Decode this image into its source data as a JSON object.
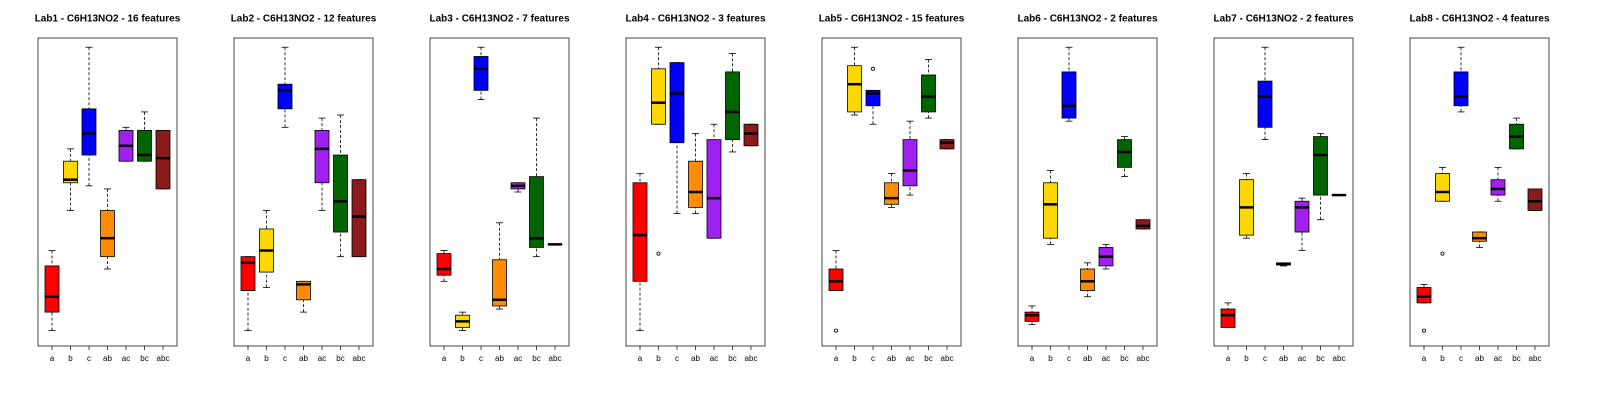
{
  "chart_data": [
    {
      "type": "box",
      "title": "Lab1 - C6H13NO2 - 16 features",
      "ylim": [
        0,
        100
      ],
      "categories": [
        "a",
        "b",
        "c",
        "ab",
        "ac",
        "bc",
        "abc"
      ],
      "colors": [
        "#ff0000",
        "#ffd700",
        "#0000ff",
        "#ff8c00",
        "#a020f0",
        "#006400",
        "#8b1a1a"
      ],
      "boxes": [
        {
          "whislo": 5,
          "q1": 11,
          "med": 16,
          "q3": 26,
          "whishi": 31
        },
        {
          "whislo": 44,
          "q1": 53,
          "med": 54,
          "q3": 60,
          "whishi": 64
        },
        {
          "whislo": 52,
          "q1": 62,
          "med": 69,
          "q3": 77,
          "whishi": 97
        },
        {
          "whislo": 25,
          "q1": 29,
          "med": 35,
          "q3": 44,
          "whishi": 51
        },
        {
          "whislo": 60,
          "q1": 60,
          "med": 65,
          "q3": 70,
          "whishi": 71
        },
        {
          "whislo": 60,
          "q1": 60,
          "med": 62,
          "q3": 70,
          "whishi": 76
        },
        {
          "whislo": 51,
          "q1": 51,
          "med": 61,
          "q3": 70,
          "whishi": 70
        }
      ]
    },
    {
      "type": "box",
      "title": "Lab2 - C6H13NO2 - 12 features",
      "ylim": [
        0,
        100
      ],
      "categories": [
        "a",
        "b",
        "c",
        "ab",
        "ac",
        "bc",
        "abc"
      ],
      "colors": [
        "#ff0000",
        "#ffd700",
        "#0000ff",
        "#ff8c00",
        "#a020f0",
        "#006400",
        "#8b1a1a"
      ],
      "boxes": [
        {
          "whislo": 5,
          "q1": 18,
          "med": 27,
          "q3": 29,
          "whishi": 29
        },
        {
          "whislo": 19,
          "q1": 24,
          "med": 31,
          "q3": 38,
          "whishi": 44
        },
        {
          "whislo": 71,
          "q1": 77,
          "med": 83,
          "q3": 85,
          "whishi": 97
        },
        {
          "whislo": 11,
          "q1": 15,
          "med": 20,
          "q3": 21,
          "whishi": 21
        },
        {
          "whislo": 44,
          "q1": 53,
          "med": 64,
          "q3": 70,
          "whishi": 74
        },
        {
          "whislo": 29,
          "q1": 37,
          "med": 47,
          "q3": 62,
          "whishi": 75
        },
        {
          "whislo": 29,
          "q1": 29,
          "med": 42,
          "q3": 54,
          "whishi": 54
        }
      ]
    },
    {
      "type": "box",
      "title": "Lab3 - C6H13NO2 - 7 features",
      "ylim": [
        0,
        100
      ],
      "categories": [
        "a",
        "b",
        "c",
        "ab",
        "ac",
        "bc",
        "abc"
      ],
      "colors": [
        "#ff0000",
        "#ffd700",
        "#0000ff",
        "#ff8c00",
        "#a020f0",
        "#006400",
        "#8b1a1a"
      ],
      "boxes": [
        {
          "whislo": 21,
          "q1": 23,
          "med": 25,
          "q3": 30,
          "whishi": 31
        },
        {
          "whislo": 5,
          "q1": 6,
          "med": 8,
          "q3": 10,
          "whishi": 11
        },
        {
          "whislo": 80,
          "q1": 83,
          "med": 90,
          "q3": 94,
          "whishi": 97
        },
        {
          "whislo": 12,
          "q1": 13,
          "med": 15,
          "q3": 28,
          "whishi": 40
        },
        {
          "whislo": 50,
          "q1": 51,
          "med": 52,
          "q3": 53,
          "whishi": 53
        },
        {
          "whislo": 29,
          "q1": 32,
          "med": 35,
          "q3": 55,
          "whishi": 74
        },
        {
          "whislo": 33,
          "q1": 33,
          "med": 33,
          "q3": 33,
          "whishi": 33
        }
      ]
    },
    {
      "type": "box",
      "title": "Lab4 - C6H13NO2 - 3 features",
      "ylim": [
        0,
        100
      ],
      "categories": [
        "a",
        "b",
        "c",
        "ab",
        "ac",
        "bc",
        "abc"
      ],
      "colors": [
        "#ff0000",
        "#ffd700",
        "#0000ff",
        "#ff8c00",
        "#a020f0",
        "#006400",
        "#8b1a1a"
      ],
      "boxes": [
        {
          "whislo": 5,
          "q1": 21,
          "med": 36,
          "q3": 53,
          "whishi": 56
        },
        {
          "whislo": 72,
          "q1": 72,
          "med": 79,
          "q3": 90,
          "whishi": 97,
          "outliers": [
            30
          ]
        },
        {
          "whislo": 43,
          "q1": 66,
          "med": 82,
          "q3": 92,
          "whishi": 92
        },
        {
          "whislo": 43,
          "q1": 45,
          "med": 50,
          "q3": 60,
          "whishi": 69
        },
        {
          "whislo": 35,
          "q1": 35,
          "med": 48,
          "q3": 67,
          "whishi": 72
        },
        {
          "whislo": 63,
          "q1": 67,
          "med": 76,
          "q3": 89,
          "whishi": 95
        },
        {
          "whislo": 65,
          "q1": 65,
          "med": 69,
          "q3": 72,
          "whishi": 72
        }
      ]
    },
    {
      "type": "box",
      "title": "Lab5 - C6H13NO2 - 15 features",
      "ylim": [
        0,
        100
      ],
      "categories": [
        "a",
        "b",
        "c",
        "ab",
        "ac",
        "bc",
        "abc"
      ],
      "colors": [
        "#ff0000",
        "#ffd700",
        "#0000ff",
        "#ff8c00",
        "#a020f0",
        "#006400",
        "#8b1a1a"
      ],
      "boxes": [
        {
          "whislo": 18,
          "q1": 18,
          "med": 21,
          "q3": 25,
          "whishi": 31,
          "outliers": [
            5
          ]
        },
        {
          "whislo": 75,
          "q1": 76,
          "med": 85,
          "q3": 91,
          "whishi": 97
        },
        {
          "whislo": 72,
          "q1": 78,
          "med": 82,
          "q3": 83,
          "whishi": 83,
          "outliers": [
            90
          ]
        },
        {
          "whislo": 45,
          "q1": 46,
          "med": 48,
          "q3": 53,
          "whishi": 56
        },
        {
          "whislo": 49,
          "q1": 52,
          "med": 57,
          "q3": 67,
          "whishi": 73
        },
        {
          "whislo": 74,
          "q1": 76,
          "med": 81,
          "q3": 88,
          "whishi": 93
        },
        {
          "whislo": 64,
          "q1": 64,
          "med": 66,
          "q3": 67,
          "whishi": 67
        }
      ]
    },
    {
      "type": "box",
      "title": "Lab6 - C6H13NO2 - 2 features",
      "ylim": [
        0,
        100
      ],
      "categories": [
        "a",
        "b",
        "c",
        "ab",
        "ac",
        "bc",
        "abc"
      ],
      "colors": [
        "#ff0000",
        "#ffd700",
        "#0000ff",
        "#ff8c00",
        "#a020f0",
        "#006400",
        "#8b1a1a"
      ],
      "boxes": [
        {
          "whislo": 7,
          "q1": 8,
          "med": 10,
          "q3": 11,
          "whishi": 13
        },
        {
          "whislo": 33,
          "q1": 35,
          "med": 46,
          "q3": 53,
          "whishi": 57
        },
        {
          "whislo": 73,
          "q1": 74,
          "med": 78,
          "q3": 89,
          "whishi": 97
        },
        {
          "whislo": 16,
          "q1": 18,
          "med": 21,
          "q3": 25,
          "whishi": 27
        },
        {
          "whislo": 25,
          "q1": 26,
          "med": 29,
          "q3": 32,
          "whishi": 33
        },
        {
          "whislo": 55,
          "q1": 58,
          "med": 63,
          "q3": 67,
          "whishi": 68
        },
        {
          "whislo": 38,
          "q1": 38,
          "med": 39,
          "q3": 41,
          "whishi": 41
        }
      ]
    },
    {
      "type": "box",
      "title": "Lab7 - C6H13NO2 - 2 features",
      "ylim": [
        0,
        100
      ],
      "categories": [
        "a",
        "b",
        "c",
        "ab",
        "ac",
        "bc",
        "abc"
      ],
      "colors": [
        "#ff0000",
        "#ffd700",
        "#0000ff",
        "#ff8c00",
        "#a020f0",
        "#006400",
        "#8b1a1a"
      ],
      "boxes": [
        {
          "whislo": 6,
          "q1": 6,
          "med": 10,
          "q3": 12,
          "whishi": 14
        },
        {
          "whislo": 35,
          "q1": 36,
          "med": 45,
          "q3": 54,
          "whishi": 56
        },
        {
          "whislo": 67,
          "q1": 71,
          "med": 81,
          "q3": 86,
          "whishi": 97
        },
        {
          "whislo": 26,
          "q1": 26.3,
          "med": 26.6,
          "q3": 27,
          "whishi": 27
        },
        {
          "whislo": 31,
          "q1": 37,
          "med": 45,
          "q3": 47,
          "whishi": 48
        },
        {
          "whislo": 41,
          "q1": 49,
          "med": 62,
          "q3": 68,
          "whishi": 69
        },
        {
          "whislo": 49,
          "q1": 49,
          "med": 49,
          "q3": 49,
          "whishi": 49
        }
      ]
    },
    {
      "type": "box",
      "title": "Lab8 - C6H13NO2 - 4 features",
      "ylim": [
        0,
        100
      ],
      "categories": [
        "a",
        "b",
        "c",
        "ab",
        "ac",
        "bc",
        "abc"
      ],
      "colors": [
        "#ff0000",
        "#ffd700",
        "#0000ff",
        "#ff8c00",
        "#a020f0",
        "#006400",
        "#8b1a1a"
      ],
      "boxes": [
        {
          "whislo": 14,
          "q1": 14,
          "med": 16,
          "q3": 19,
          "whishi": 20,
          "outliers": [
            5
          ]
        },
        {
          "whislo": 47,
          "q1": 47,
          "med": 50,
          "q3": 56,
          "whishi": 58,
          "outliers": [
            30
          ]
        },
        {
          "whislo": 76,
          "q1": 78,
          "med": 81,
          "q3": 89,
          "whishi": 97
        },
        {
          "whislo": 32,
          "q1": 34,
          "med": 35,
          "q3": 37,
          "whishi": 37
        },
        {
          "whislo": 47,
          "q1": 49,
          "med": 51,
          "q3": 54,
          "whishi": 58
        },
        {
          "whislo": 64,
          "q1": 64,
          "med": 68,
          "q3": 72,
          "whishi": 74
        },
        {
          "whislo": 44,
          "q1": 44,
          "med": 47,
          "q3": 51,
          "whishi": 51
        }
      ]
    }
  ]
}
